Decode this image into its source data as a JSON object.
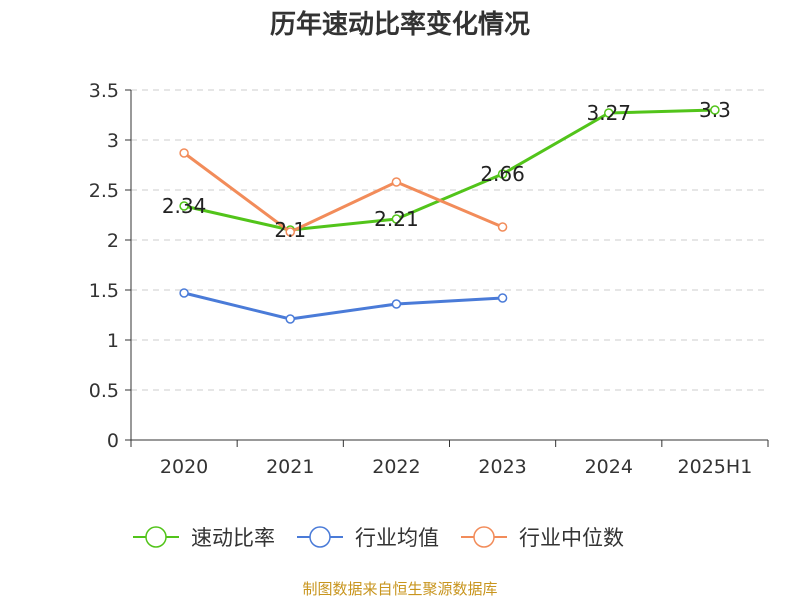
{
  "chart_data": {
    "type": "line",
    "title": "历年速动比率变化情况",
    "categories": [
      "2020",
      "2021",
      "2022",
      "2023",
      "2024",
      "2025H1"
    ],
    "ylim": [
      0,
      3.5
    ],
    "yticks": [
      0,
      0.5,
      1,
      1.5,
      2,
      2.5,
      3,
      3.5
    ],
    "ytick_labels": [
      "0",
      "0.5",
      "1",
      "1.5",
      "2",
      "2.5",
      "3",
      "3.5"
    ],
    "grid": true,
    "legend_position": "bottom",
    "series": [
      {
        "name": "速动比率",
        "color": "#52c41a",
        "values": [
          2.34,
          2.1,
          2.21,
          2.66,
          3.27,
          3.3
        ],
        "data_labels": [
          "2.34",
          "2.1",
          "2.21",
          "2.66",
          "3.27",
          "3.3"
        ]
      },
      {
        "name": "行业均值",
        "color": "#4a7bd8",
        "values": [
          1.47,
          1.21,
          1.36,
          1.42,
          null,
          null
        ]
      },
      {
        "name": "行业中位数",
        "color": "#f28c5a",
        "values": [
          2.87,
          2.08,
          2.58,
          2.13,
          null,
          null
        ]
      }
    ]
  },
  "source_text": "制图数据来自恒生聚源数据库"
}
